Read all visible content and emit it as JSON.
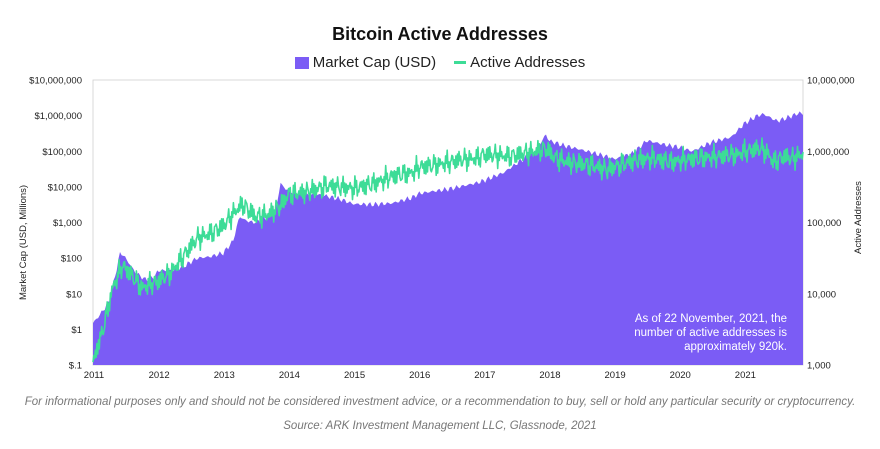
{
  "colors": {
    "market_cap": "#7b5cf5",
    "active_addresses": "#3ddc97",
    "text": "#111111",
    "note_text": "#ffffff"
  },
  "legend": {
    "market_cap": "Market Cap (USD)",
    "active_addresses": "Active Addresses"
  },
  "note": [
    "As of 22 November, 2021, the",
    "number of active addresses is",
    "approximately 920k."
  ],
  "footnote": "For informational purposes only and should not be considered investment advice, or a recommendation to buy, sell or hold any particular security or cryptocurrency.",
  "source": "Source: ARK Investment Management LLC, Glassnode, 2021",
  "chart_data": {
    "type": "area+line",
    "title": "Bitcoin Active Addresses",
    "ylabel_left": "Market Cap (USD, Millions)",
    "ylabel_right": "Active Addresses",
    "ylim_left": [
      0.1,
      10000000
    ],
    "ylim_right": [
      1000,
      10000000
    ],
    "y_scale": "log",
    "left_ticks": [
      "$.1",
      "$1",
      "$10",
      "$100",
      "$1,000",
      "$10,000",
      "$100,000",
      "$1,000,000",
      "$10,000,000"
    ],
    "right_ticks": [
      "1,000",
      "10,000",
      "100,000",
      "1,000,000",
      "10,000,000"
    ],
    "x_ticks": [
      "2011",
      "2012",
      "2013",
      "2014",
      "2015",
      "2016",
      "2017",
      "2018",
      "2019",
      "2020",
      "2021"
    ],
    "xlim": [
      2011.0,
      2021.9
    ],
    "series": [
      {
        "name": "Market Cap (USD)",
        "style": "area",
        "x": [
          2011.0,
          2011.1,
          2011.25,
          2011.42,
          2011.5,
          2011.65,
          2011.8,
          2011.95,
          2012.0,
          2012.2,
          2012.4,
          2012.6,
          2012.8,
          2013.0,
          2013.15,
          2013.25,
          2013.32,
          2013.45,
          2013.6,
          2013.8,
          2013.88,
          2013.92,
          2014.0,
          2014.2,
          2014.5,
          2014.8,
          2015.0,
          2015.3,
          2015.6,
          2015.9,
          2016.0,
          2016.5,
          2016.9,
          2017.0,
          2017.3,
          2017.6,
          2017.8,
          2017.95,
          2018.0,
          2018.2,
          2018.5,
          2018.9,
          2019.0,
          2019.3,
          2019.5,
          2019.8,
          2020.0,
          2020.2,
          2020.5,
          2020.8,
          2021.0,
          2021.2,
          2021.3,
          2021.5,
          2021.6,
          2021.85,
          2021.9
        ],
        "values": [
          1.5,
          2.5,
          6,
          150,
          100,
          40,
          25,
          30,
          45,
          45,
          60,
          100,
          110,
          140,
          300,
          1500,
          1200,
          1000,
          1200,
          2000,
          13000,
          10000,
          8000,
          6000,
          6000,
          4500,
          3300,
          3200,
          3500,
          5000,
          6500,
          9000,
          13000,
          15000,
          25000,
          60000,
          100000,
          300000,
          200000,
          150000,
          110000,
          70000,
          60000,
          90000,
          200000,
          150000,
          130000,
          100000,
          180000,
          250000,
          600000,
          1000000,
          1100000,
          700000,
          800000,
          1200000,
          1100000
        ]
      },
      {
        "name": "Active Addresses",
        "style": "line",
        "x": [
          2011.0,
          2011.05,
          2011.15,
          2011.3,
          2011.45,
          2011.6,
          2011.75,
          2011.9,
          2012.0,
          2012.2,
          2012.4,
          2012.6,
          2012.8,
          2013.0,
          2013.2,
          2013.3,
          2013.5,
          2013.7,
          2013.9,
          2014.0,
          2014.3,
          2014.6,
          2015.0,
          2015.3,
          2015.6,
          2015.9,
          2016.0,
          2016.3,
          2016.6,
          2016.9,
          2017.0,
          2017.4,
          2017.8,
          2017.95,
          2018.1,
          2018.3,
          2018.6,
          2018.9,
          2019.0,
          2019.3,
          2019.6,
          2019.9,
          2020.0,
          2020.3,
          2020.6,
          2020.9,
          2021.0,
          2021.25,
          2021.35,
          2021.45,
          2021.6,
          2021.75,
          2021.9
        ],
        "values": [
          1000,
          1600,
          3000,
          12000,
          25000,
          18000,
          12000,
          14000,
          15000,
          20000,
          35000,
          60000,
          70000,
          90000,
          150000,
          180000,
          120000,
          130000,
          180000,
          250000,
          270000,
          330000,
          300000,
          350000,
          450000,
          500000,
          600000,
          650000,
          750000,
          800000,
          900000,
          850000,
          1000000,
          1100000,
          800000,
          700000,
          650000,
          550000,
          600000,
          750000,
          800000,
          700000,
          750000,
          800000,
          850000,
          900000,
          1000000,
          1100000,
          950000,
          700000,
          850000,
          800000,
          920000
        ]
      }
    ]
  }
}
